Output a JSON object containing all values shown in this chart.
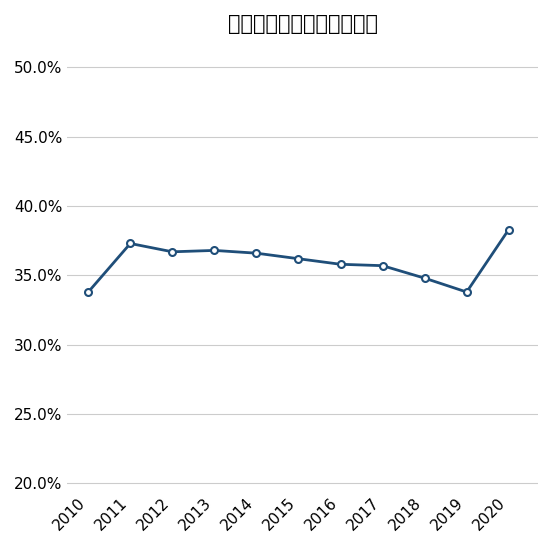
{
  "title": "貨物自動車の積載率の推移",
  "years": [
    2010,
    2011,
    2012,
    2013,
    2014,
    2015,
    2016,
    2017,
    2018,
    2019,
    2020
  ],
  "values": [
    0.338,
    0.373,
    0.367,
    0.368,
    0.366,
    0.362,
    0.358,
    0.357,
    0.348,
    0.338,
    0.383
  ],
  "line_color": "#1F4E79",
  "marker_color": "#FFFFFF",
  "marker_edge_color": "#1F4E79",
  "ylim": [
    0.195,
    0.515
  ],
  "yticks": [
    0.2,
    0.25,
    0.3,
    0.35,
    0.4,
    0.45,
    0.5
  ],
  "background_color": "#FFFFFF",
  "grid_color": "#CCCCCC",
  "title_fontsize": 15,
  "tick_fontsize": 11
}
